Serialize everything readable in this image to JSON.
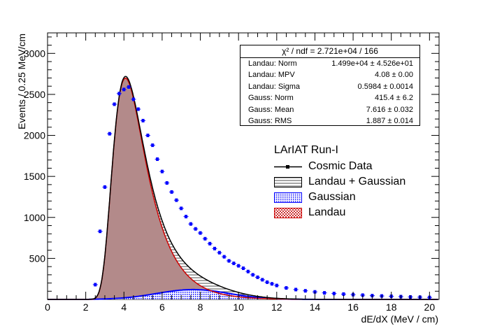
{
  "chart_data": {
    "type": "histogram",
    "xlabel": "dE/dX (MeV / cm)",
    "ylabel": "Events / 0.25 MeV/cm",
    "xlim": [
      0,
      20.5
    ],
    "ylim": [
      0,
      3250
    ],
    "x_ticks": [
      "0",
      "2",
      "4",
      "6",
      "8",
      "10",
      "12",
      "14",
      "16",
      "18",
      "20"
    ],
    "y_ticks": [
      "500",
      "1000",
      "1500",
      "2000",
      "2500",
      "3000"
    ],
    "legend_title": "LArIAT Run-I",
    "series": [
      {
        "name": "Cosmic Data",
        "color": "#0000ff",
        "style": "markers",
        "x": [
          2.5,
          2.75,
          3.0,
          3.25,
          3.5,
          3.75,
          4.0,
          4.25,
          4.5,
          4.75,
          5.0,
          5.25,
          5.5,
          5.75,
          6.0,
          6.25,
          6.5,
          6.75,
          7.0,
          7.25,
          7.5,
          7.75,
          8.0,
          8.25,
          8.5,
          8.75,
          9.0,
          9.25,
          9.5,
          9.75,
          10.0,
          10.25,
          10.5,
          10.75,
          11.0,
          11.25,
          11.5,
          11.75,
          12.0,
          12.5,
          13.0,
          13.5,
          14.0,
          14.5,
          15.0,
          15.5,
          16.0,
          16.5,
          17.0,
          17.5,
          18.0,
          18.5,
          19.0,
          19.5,
          20.0
        ],
        "y": [
          180,
          830,
          1370,
          2020,
          2380,
          2510,
          2560,
          2590,
          2440,
          2320,
          2180,
          2000,
          1880,
          1710,
          1560,
          1420,
          1310,
          1210,
          1110,
          1010,
          920,
          860,
          810,
          740,
          680,
          620,
          570,
          520,
          470,
          440,
          410,
          380,
          340,
          300,
          270,
          240,
          210,
          190,
          170,
          140,
          120,
          105,
          92,
          80,
          72,
          65,
          58,
          52,
          46,
          42,
          38,
          34,
          30,
          27,
          24
        ]
      },
      {
        "name": "Landau + Gaussian",
        "color": "#000000",
        "style": "hatched"
      },
      {
        "name": "Gaussian",
        "color": "#0000ff",
        "style": "dotted-fill"
      },
      {
        "name": "Landau",
        "color": "#cc0000",
        "style": "filled"
      }
    ]
  },
  "stats": {
    "header": "χ² / ndf = 2.721e+04 / 166",
    "rows": [
      {
        "key": "Landau: Norm",
        "value": "1.499e+04 ± 4.526e+01"
      },
      {
        "key": "Landau: MPV",
        "value": "4.08 ± 0.00"
      },
      {
        "key": "Landau: Sigma",
        "value": "0.5984 ± 0.0014"
      },
      {
        "key": "Gauss: Norm",
        "value": "415.4 ± 6.2"
      },
      {
        "key": "Gauss: Mean",
        "value": "7.616 ± 0.032"
      },
      {
        "key": "Gauss: RMS",
        "value": "1.887 ± 0.014"
      }
    ]
  },
  "fit": {
    "landau_norm": 14990,
    "landau_mpv": 4.08,
    "landau_sigma": 0.5984,
    "gauss_norm": 415.4,
    "gauss_mean": 7.616,
    "gauss_rms": 1.887
  },
  "colors": {
    "landau_fill": "#b38a8a",
    "landau_line": "#cc0000",
    "total_line": "#000000",
    "data": "#0000ff"
  }
}
